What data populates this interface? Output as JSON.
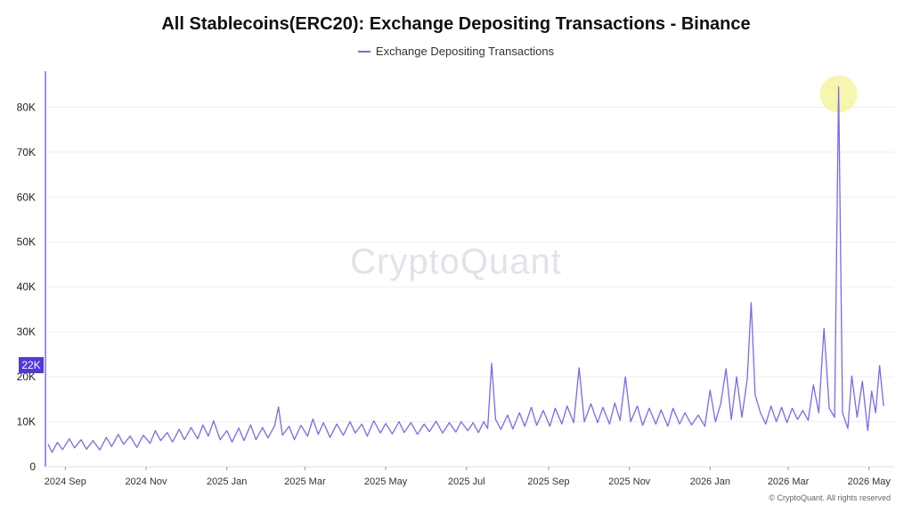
{
  "title": "All Stablecoins(ERC20): Exchange Depositing Transactions - Binance",
  "legend_label": "Exchange Depositing Transactions",
  "watermark": "CryptoQuant",
  "copyright": "© CryptoQuant. All rights reserved",
  "current_value_label": "22K",
  "colors": {
    "series": "#7b68ee",
    "badge": "#4f38e0",
    "highlight": "#f5f5a0",
    "grid": "#ededed"
  },
  "chart_data": {
    "type": "line",
    "title": "All Stablecoins(ERC20): Exchange Depositing Transactions - Binance",
    "xlabel": "",
    "ylabel": "",
    "ylim": [
      0,
      88000
    ],
    "xlim": [
      "2024-08-17",
      "2026-05-20"
    ],
    "y_ticks": [
      0,
      10000,
      20000,
      30000,
      40000,
      50000,
      60000,
      70000,
      80000
    ],
    "y_tick_labels": [
      "0",
      "10K",
      "20K",
      "30K",
      "40K",
      "50K",
      "60K",
      "70K",
      "80K"
    ],
    "x_ticks": [
      "2024-09-01",
      "2024-11-01",
      "2025-01-01",
      "2025-03-01",
      "2025-05-01",
      "2025-07-01",
      "2025-09-01",
      "2025-11-01",
      "2026-01-01",
      "2026-03-01",
      "2026-05-01"
    ],
    "x_tick_labels": [
      "2024 Sep",
      "2024 Nov",
      "2025 Jan",
      "2025 Mar",
      "2025 May",
      "2025 Jul",
      "2025 Sep",
      "2025 Nov",
      "2026 Jan",
      "2026 Mar",
      "2026 May"
    ],
    "grid": true,
    "legend": "top-center",
    "highlighted_point": {
      "x": "2026-04-08",
      "y": 84500
    },
    "series": [
      {
        "name": "Exchange Depositing Transactions",
        "points": [
          [
            "2024-08-19",
            5000
          ],
          [
            "2024-08-22",
            3200
          ],
          [
            "2024-08-26",
            5400
          ],
          [
            "2024-08-30",
            3800
          ],
          [
            "2024-09-04",
            6200
          ],
          [
            "2024-09-08",
            4200
          ],
          [
            "2024-09-13",
            6000
          ],
          [
            "2024-09-17",
            3900
          ],
          [
            "2024-09-22",
            5800
          ],
          [
            "2024-09-27",
            3700
          ],
          [
            "2024-10-02",
            6500
          ],
          [
            "2024-10-06",
            4500
          ],
          [
            "2024-10-11",
            7200
          ],
          [
            "2024-10-15",
            5000
          ],
          [
            "2024-10-20",
            6800
          ],
          [
            "2024-10-25",
            4300
          ],
          [
            "2024-10-30",
            7000
          ],
          [
            "2024-11-04",
            5200
          ],
          [
            "2024-11-08",
            8000
          ],
          [
            "2024-11-12",
            5800
          ],
          [
            "2024-11-17",
            7600
          ],
          [
            "2024-11-21",
            5500
          ],
          [
            "2024-11-26",
            8300
          ],
          [
            "2024-11-30",
            6000
          ],
          [
            "2024-12-05",
            8700
          ],
          [
            "2024-12-10",
            6200
          ],
          [
            "2024-12-14",
            9300
          ],
          [
            "2024-12-18",
            6800
          ],
          [
            "2024-12-22",
            10200
          ],
          [
            "2024-12-27",
            6000
          ],
          [
            "2025-01-01",
            8000
          ],
          [
            "2025-01-05",
            5500
          ],
          [
            "2025-01-10",
            8600
          ],
          [
            "2025-01-14",
            5800
          ],
          [
            "2025-01-19",
            9300
          ],
          [
            "2025-01-23",
            6000
          ],
          [
            "2025-01-28",
            8700
          ],
          [
            "2025-02-01",
            6400
          ],
          [
            "2025-02-06",
            9000
          ],
          [
            "2025-02-09",
            13300
          ],
          [
            "2025-02-12",
            7000
          ],
          [
            "2025-02-17",
            9000
          ],
          [
            "2025-02-21",
            6000
          ],
          [
            "2025-02-26",
            9200
          ],
          [
            "2025-03-03",
            6800
          ],
          [
            "2025-03-07",
            10600
          ],
          [
            "2025-03-11",
            7200
          ],
          [
            "2025-03-15",
            9800
          ],
          [
            "2025-03-20",
            6500
          ],
          [
            "2025-03-25",
            9500
          ],
          [
            "2025-03-30",
            7000
          ],
          [
            "2025-04-04",
            10000
          ],
          [
            "2025-04-08",
            7500
          ],
          [
            "2025-04-13",
            9500
          ],
          [
            "2025-04-17",
            6800
          ],
          [
            "2025-04-22",
            10200
          ],
          [
            "2025-04-27",
            7500
          ],
          [
            "2025-05-01",
            9600
          ],
          [
            "2025-05-06",
            7300
          ],
          [
            "2025-05-11",
            10000
          ],
          [
            "2025-05-15",
            7600
          ],
          [
            "2025-05-20",
            9800
          ],
          [
            "2025-05-25",
            7200
          ],
          [
            "2025-05-30",
            9500
          ],
          [
            "2025-06-03",
            7800
          ],
          [
            "2025-06-08",
            10100
          ],
          [
            "2025-06-13",
            7500
          ],
          [
            "2025-06-18",
            9800
          ],
          [
            "2025-06-23",
            7700
          ],
          [
            "2025-06-27",
            10000
          ],
          [
            "2025-07-02",
            8000
          ],
          [
            "2025-07-06",
            9800
          ],
          [
            "2025-07-10",
            7600
          ],
          [
            "2025-07-14",
            10000
          ],
          [
            "2025-07-17",
            8500
          ],
          [
            "2025-07-20",
            23000
          ],
          [
            "2025-07-23",
            10500
          ],
          [
            "2025-07-27",
            8300
          ],
          [
            "2025-08-01",
            11500
          ],
          [
            "2025-08-05",
            8400
          ],
          [
            "2025-08-10",
            12000
          ],
          [
            "2025-08-14",
            9000
          ],
          [
            "2025-08-19",
            13200
          ],
          [
            "2025-08-23",
            9200
          ],
          [
            "2025-08-28",
            12500
          ],
          [
            "2025-09-02",
            9000
          ],
          [
            "2025-09-06",
            13000
          ],
          [
            "2025-09-11",
            9500
          ],
          [
            "2025-09-15",
            13500
          ],
          [
            "2025-09-20",
            9800
          ],
          [
            "2025-09-24",
            22000
          ],
          [
            "2025-09-28",
            10000
          ],
          [
            "2025-10-03",
            14000
          ],
          [
            "2025-10-08",
            9800
          ],
          [
            "2025-10-12",
            13200
          ],
          [
            "2025-10-17",
            9500
          ],
          [
            "2025-10-21",
            14200
          ],
          [
            "2025-10-25",
            10300
          ],
          [
            "2025-10-29",
            20000
          ],
          [
            "2025-11-02",
            10000
          ],
          [
            "2025-11-07",
            13500
          ],
          [
            "2025-11-11",
            9200
          ],
          [
            "2025-11-16",
            13000
          ],
          [
            "2025-11-21",
            9500
          ],
          [
            "2025-11-25",
            12600
          ],
          [
            "2025-11-30",
            9000
          ],
          [
            "2025-12-04",
            13000
          ],
          [
            "2025-12-09",
            9500
          ],
          [
            "2025-12-13",
            12000
          ],
          [
            "2025-12-18",
            9300
          ],
          [
            "2025-12-23",
            11500
          ],
          [
            "2025-12-28",
            9000
          ],
          [
            "2026-01-01",
            17000
          ],
          [
            "2026-01-05",
            10000
          ],
          [
            "2026-01-09",
            14000
          ],
          [
            "2026-01-13",
            21800
          ],
          [
            "2026-01-17",
            10500
          ],
          [
            "2026-01-21",
            20000
          ],
          [
            "2026-01-25",
            11000
          ],
          [
            "2026-01-29",
            19500
          ],
          [
            "2026-02-01",
            36500
          ],
          [
            "2026-02-04",
            16000
          ],
          [
            "2026-02-08",
            12000
          ],
          [
            "2026-02-12",
            9500
          ],
          [
            "2026-02-16",
            13500
          ],
          [
            "2026-02-20",
            10000
          ],
          [
            "2026-02-24",
            13200
          ],
          [
            "2026-02-28",
            9800
          ],
          [
            "2026-03-04",
            13000
          ],
          [
            "2026-03-08",
            10500
          ],
          [
            "2026-03-12",
            12500
          ],
          [
            "2026-03-16",
            10300
          ],
          [
            "2026-03-20",
            18200
          ],
          [
            "2026-03-24",
            12000
          ],
          [
            "2026-03-28",
            30800
          ],
          [
            "2026-04-01",
            13000
          ],
          [
            "2026-04-05",
            11000
          ],
          [
            "2026-04-08",
            84500
          ],
          [
            "2026-04-11",
            12000
          ],
          [
            "2026-04-15",
            8500
          ],
          [
            "2026-04-18",
            20200
          ],
          [
            "2026-04-22",
            11000
          ],
          [
            "2026-04-26",
            19000
          ],
          [
            "2026-04-30",
            8000
          ],
          [
            "2026-05-03",
            16800
          ],
          [
            "2026-05-06",
            12000
          ],
          [
            "2026-05-09",
            22500
          ],
          [
            "2026-05-12",
            13500
          ]
        ]
      }
    ]
  }
}
